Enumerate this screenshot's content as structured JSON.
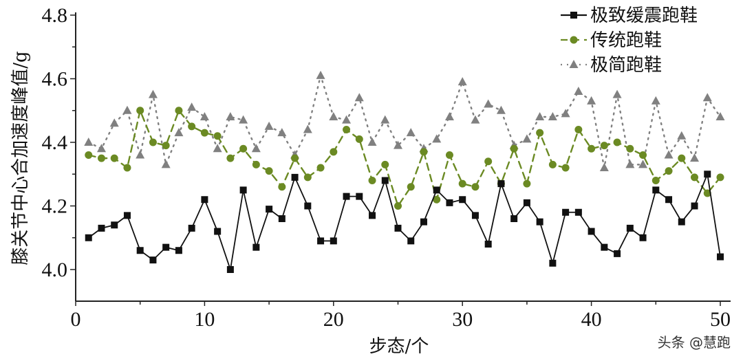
{
  "chart_data": {
    "type": "line",
    "title": "",
    "xlabel": "步态/个",
    "ylabel": "膝关节中心合加速度峰值/g",
    "xlim": [
      0,
      51
    ],
    "ylim": [
      3.9,
      4.8
    ],
    "x_ticks": [
      "0",
      "10",
      "20",
      "30",
      "40",
      "50"
    ],
    "y_ticks": [
      "4.0",
      "4.2",
      "4.4",
      "4.6",
      "4.8"
    ],
    "grid": false,
    "legend_position": "top-right",
    "x": [
      1,
      2,
      3,
      4,
      5,
      6,
      7,
      8,
      9,
      10,
      11,
      12,
      13,
      14,
      15,
      16,
      17,
      18,
      19,
      20,
      21,
      22,
      23,
      24,
      25,
      26,
      27,
      28,
      29,
      30,
      31,
      32,
      33,
      34,
      35,
      36,
      37,
      38,
      39,
      40,
      41,
      42,
      43,
      44,
      45,
      46,
      47,
      48,
      49,
      50
    ],
    "series": [
      {
        "name": "极致缓震跑鞋",
        "color": "#111111",
        "marker": "square",
        "line": "solid",
        "values": [
          4.1,
          4.13,
          4.14,
          4.17,
          4.06,
          4.03,
          4.07,
          4.06,
          4.13,
          4.22,
          4.12,
          4.0,
          4.25,
          4.07,
          4.19,
          4.16,
          4.29,
          4.2,
          4.09,
          4.09,
          4.23,
          4.23,
          4.17,
          4.28,
          4.13,
          4.09,
          4.15,
          4.25,
          4.21,
          4.22,
          4.17,
          4.08,
          4.27,
          4.16,
          4.21,
          4.15,
          4.02,
          4.18,
          4.18,
          4.12,
          4.07,
          4.05,
          4.13,
          4.1,
          4.25,
          4.22,
          4.15,
          4.2,
          4.3,
          4.04
        ]
      },
      {
        "name": "传统跑鞋",
        "color": "#6b8a23",
        "marker": "circle",
        "line": "dashed",
        "values": [
          4.36,
          4.35,
          4.35,
          4.32,
          4.5,
          4.4,
          4.39,
          4.5,
          4.45,
          4.43,
          4.42,
          4.35,
          4.38,
          4.33,
          4.31,
          4.26,
          4.35,
          4.29,
          4.32,
          4.37,
          4.44,
          4.41,
          4.28,
          4.33,
          4.2,
          4.26,
          4.37,
          4.22,
          4.36,
          4.27,
          4.26,
          4.34,
          4.27,
          4.38,
          4.27,
          4.43,
          4.33,
          4.32,
          4.44,
          4.38,
          4.39,
          4.4,
          4.38,
          4.36,
          4.28,
          4.31,
          4.35,
          4.29,
          4.24,
          4.29
        ]
      },
      {
        "name": "极简跑鞋",
        "color": "#808080",
        "marker": "triangle",
        "line": "dotted",
        "values": [
          4.4,
          4.38,
          4.46,
          4.5,
          4.36,
          4.55,
          4.33,
          4.43,
          4.51,
          4.48,
          4.38,
          4.48,
          4.47,
          4.38,
          4.45,
          4.43,
          4.36,
          4.44,
          4.61,
          4.48,
          4.47,
          4.54,
          4.4,
          4.47,
          4.39,
          4.43,
          4.38,
          4.41,
          4.48,
          4.59,
          4.47,
          4.52,
          4.5,
          4.39,
          4.41,
          4.48,
          4.48,
          4.49,
          4.56,
          4.53,
          4.32,
          4.55,
          4.33,
          4.33,
          4.53,
          4.36,
          4.42,
          4.35,
          4.54,
          4.48
        ]
      }
    ]
  },
  "watermark": "头条 @慧跑"
}
